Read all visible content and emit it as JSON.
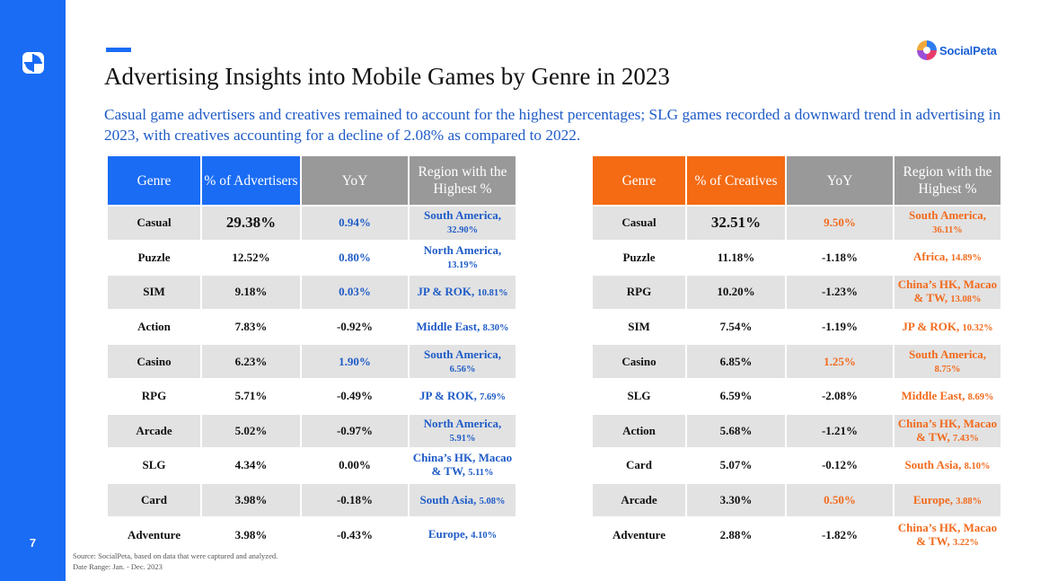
{
  "sidebar": {
    "logo_icon": "socialpeta-pinwheel-icon",
    "page_number": "7",
    "color": "#1a6cf5"
  },
  "brand": {
    "name": "SocialPeta",
    "icon": "socialpeta-logo-icon"
  },
  "title": "Advertising Insights into Mobile Games by Genre in 2023",
  "subtitle": "Casual game advertisers and creatives remained to account for the highest percentages; SLG games recorded a downward trend in advertising in 2023, with creatives accounting for a decline of 2.08% as compared to 2022.",
  "colors": {
    "blue": "#1a6cf5",
    "orange": "#f46b13",
    "header_gray": "#999999",
    "row_gray": "#e2e2e2"
  },
  "advertisers_table": {
    "headers": [
      "Genre",
      "% of Advertisers",
      "YoY",
      "Region with the Highest %"
    ],
    "rows": [
      {
        "genre": "Casual",
        "pct": "29.38%",
        "yoy": "0.94%",
        "region": "South America,",
        "region_pct": "32.90%"
      },
      {
        "genre": "Puzzle",
        "pct": "12.52%",
        "yoy": "0.80%",
        "region": "North America,",
        "region_pct": "13.19%"
      },
      {
        "genre": "SIM",
        "pct": "9.18%",
        "yoy": "0.03%",
        "region": "JP & ROK,",
        "region_pct": "10.81%"
      },
      {
        "genre": "Action",
        "pct": "7.83%",
        "yoy": "-0.92%",
        "region": "Middle East,",
        "region_pct": "8.30%"
      },
      {
        "genre": "Casino",
        "pct": "6.23%",
        "yoy": "1.90%",
        "region": "South America,",
        "region_pct": "6.56%"
      },
      {
        "genre": "RPG",
        "pct": "5.71%",
        "yoy": "-0.49%",
        "region": "JP & ROK,",
        "region_pct": "7.69%"
      },
      {
        "genre": "Arcade",
        "pct": "5.02%",
        "yoy": "-0.97%",
        "region": "North America,",
        "region_pct": "5.91%"
      },
      {
        "genre": "SLG",
        "pct": "4.34%",
        "yoy": "0.00%",
        "region": "China’s HK, Macao & TW,",
        "region_pct": "5.11%"
      },
      {
        "genre": "Card",
        "pct": "3.98%",
        "yoy": "-0.18%",
        "region": "South Asia,",
        "region_pct": "5.08%"
      },
      {
        "genre": "Adventure",
        "pct": "3.98%",
        "yoy": "-0.43%",
        "region": "Europe,",
        "region_pct": "4.10%"
      }
    ]
  },
  "creatives_table": {
    "headers": [
      "Genre",
      "% of Creatives",
      "YoY",
      "Region with the Highest %"
    ],
    "rows": [
      {
        "genre": "Casual",
        "pct": "32.51%",
        "yoy": "9.50%",
        "region": "South America,",
        "region_pct": "36.11%"
      },
      {
        "genre": "Puzzle",
        "pct": "11.18%",
        "yoy": "-1.18%",
        "region": "Africa,",
        "region_pct": "14.89%"
      },
      {
        "genre": "RPG",
        "pct": "10.20%",
        "yoy": "-1.23%",
        "region": "China’s HK, Macao & TW,",
        "region_pct": "13.08%"
      },
      {
        "genre": "SIM",
        "pct": "7.54%",
        "yoy": "-1.19%",
        "region": "JP & ROK,",
        "region_pct": "10.32%"
      },
      {
        "genre": "Casino",
        "pct": "6.85%",
        "yoy": "1.25%",
        "region": "South America,",
        "region_pct": "8.75%"
      },
      {
        "genre": "SLG",
        "pct": "6.59%",
        "yoy": "-2.08%",
        "region": "Middle East,",
        "region_pct": "8.69%"
      },
      {
        "genre": "Action",
        "pct": "5.68%",
        "yoy": "-1.21%",
        "region": "China’s HK, Macao & TW,",
        "region_pct": "7.43%"
      },
      {
        "genre": "Card",
        "pct": "5.07%",
        "yoy": "-0.12%",
        "region": "South Asia,",
        "region_pct": "8.10%"
      },
      {
        "genre": "Arcade",
        "pct": "3.30%",
        "yoy": "0.50%",
        "region": "Europe,",
        "region_pct": "3.88%"
      },
      {
        "genre": "Adventure",
        "pct": "2.88%",
        "yoy": "-1.82%",
        "region": "China’s HK, Macao & TW,",
        "region_pct": "3.22%"
      }
    ]
  },
  "source": {
    "line1": "Source: SocialPeta, based on data that were captured and analyzed.",
    "line2": "Date Range: Jan. - Dec. 2023"
  }
}
